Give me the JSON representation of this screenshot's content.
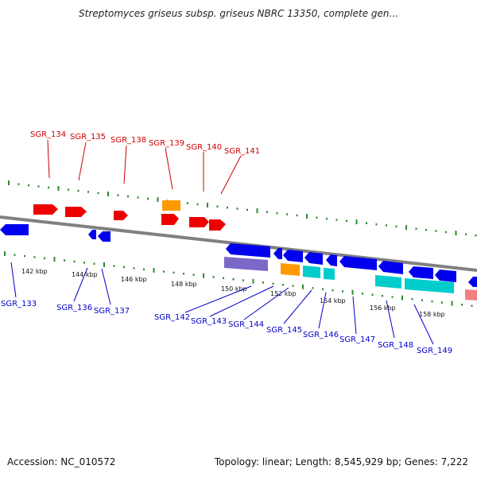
{
  "title": "Streptomyces griseus subsp. griseus NBRC 13350, complete gen...",
  "footer": {
    "accession": "Accession: NC_010572",
    "topology": "Topology: linear; Length: 8,545,929 bp; Genes: 7,222"
  },
  "colors": {
    "forward_label": "#cc0000",
    "reverse_label": "#0000cc",
    "backbone": "#808080",
    "tick": "#2e8b2e",
    "gene_red": "#ee0000",
    "gene_blue": "#0000ee",
    "gene_orange": "#ff9900",
    "gene_cyan": "#00cccc",
    "gene_purple": "#7b68c8",
    "gene_pink": "#f08080"
  },
  "scale_labels": [
    "142 kbp",
    "144 kbp",
    "146 kbp",
    "148 kbp",
    "150 kbp",
    "152 kbp",
    "154 kbp",
    "156 kbp",
    "158 kbp"
  ],
  "forward_genes": [
    "SGR_134",
    "SGR_135",
    "SGR_138",
    "SGR_139",
    "SGR_140",
    "SGR_141"
  ],
  "reverse_genes": [
    "SGR_133",
    "SGR_136",
    "SGR_137",
    "SGR_142",
    "SGR_143",
    "SGR_144",
    "SGR_145",
    "SGR_146",
    "SGR_147",
    "SGR_148",
    "SGR_149"
  ]
}
